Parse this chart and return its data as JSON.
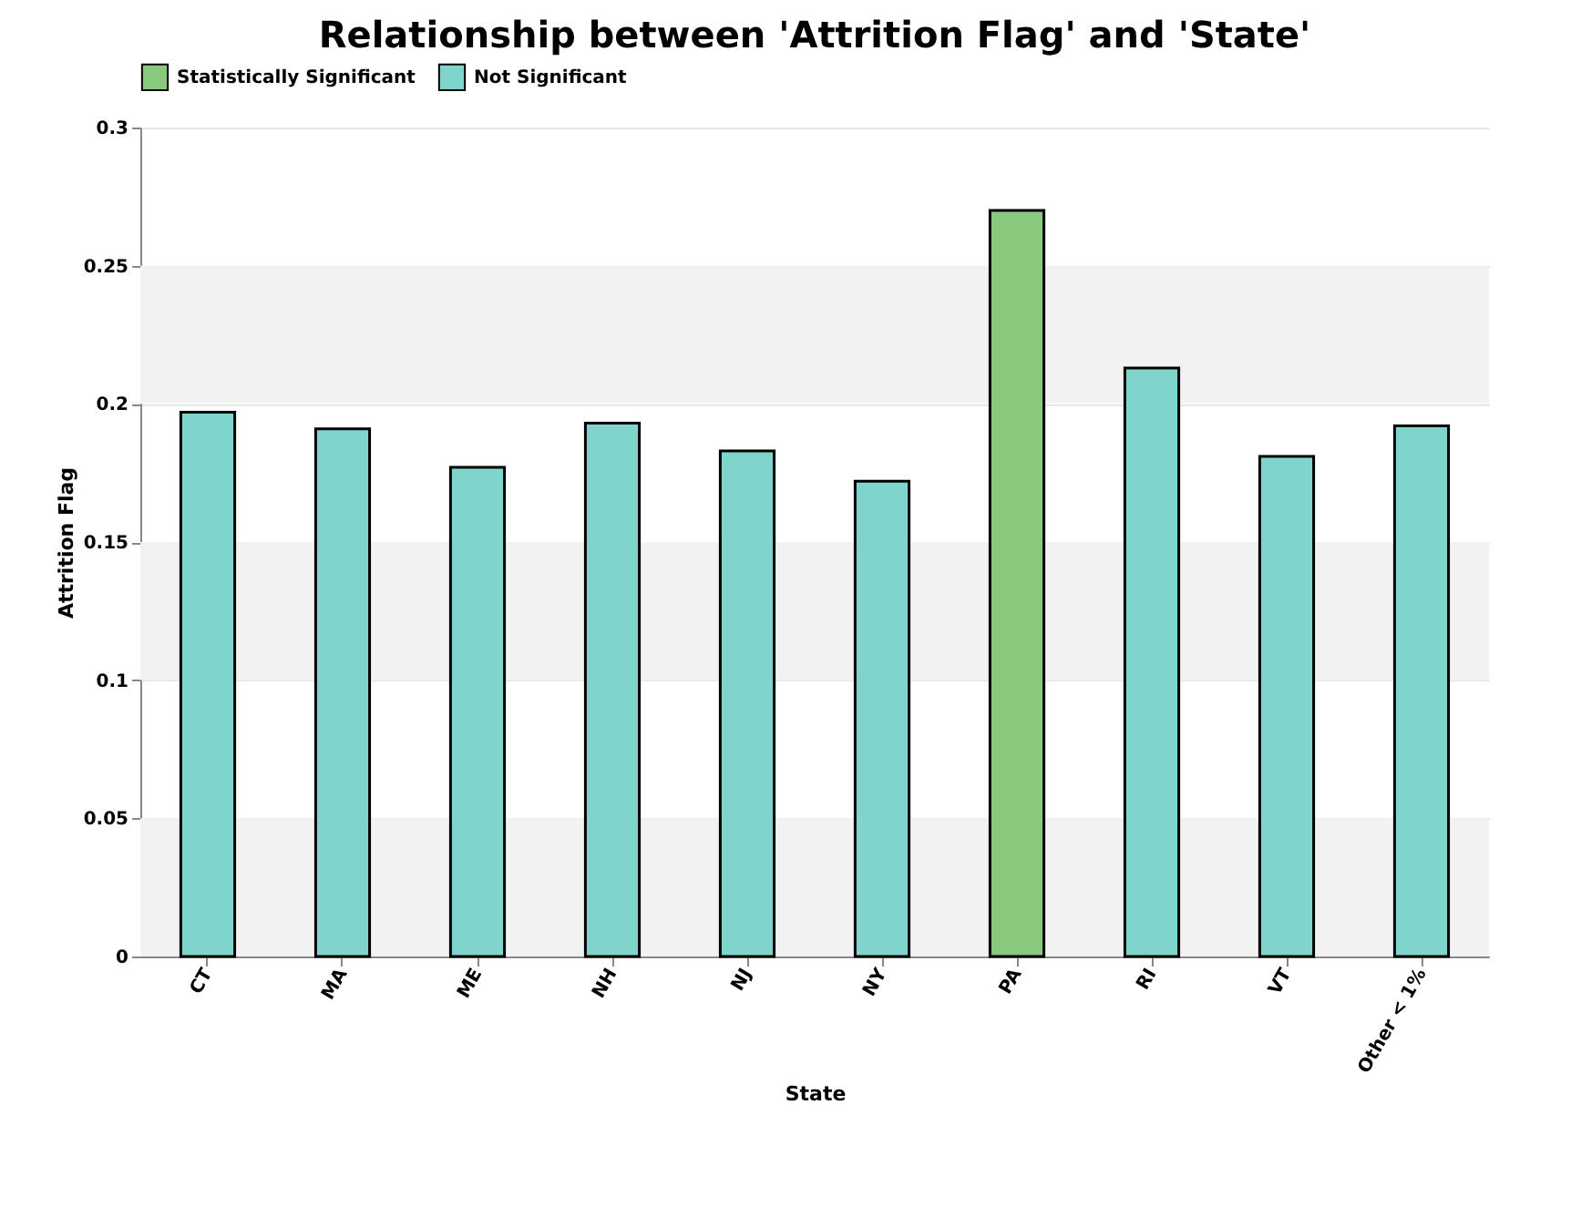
{
  "chart_data": {
    "type": "bar",
    "title": "Relationship between 'Attrition Flag' and 'State'",
    "xlabel": "State",
    "ylabel": "Attrition Flag",
    "categories": [
      "CT",
      "MA",
      "ME",
      "NH",
      "NJ",
      "NY",
      "PA",
      "RI",
      "VT",
      "Other < 1%"
    ],
    "series": [
      {
        "name": "Statistically Significant",
        "color": "#88c97e",
        "values": [
          null,
          null,
          null,
          null,
          null,
          null,
          0.27,
          null,
          null,
          null
        ]
      },
      {
        "name": "Not Significant",
        "color": "#7fd4cc",
        "values": [
          0.197,
          0.191,
          0.177,
          0.193,
          0.183,
          0.172,
          null,
          0.213,
          0.181,
          0.192
        ]
      }
    ],
    "ylim": [
      0,
      0.3
    ],
    "yticks": [
      0,
      0.05,
      0.1,
      0.15,
      0.2,
      0.25,
      0.3
    ],
    "bands": [
      {
        "axis": "y",
        "from": 0,
        "to": 0.05,
        "color": "#f2f2f2"
      },
      {
        "axis": "y",
        "from": 0.1,
        "to": 0.15,
        "color": "#f2f2f2"
      },
      {
        "axis": "y",
        "from": 0.2,
        "to": 0.25,
        "color": "#f2f2f2"
      }
    ],
    "grid": "y",
    "legend": "top"
  }
}
